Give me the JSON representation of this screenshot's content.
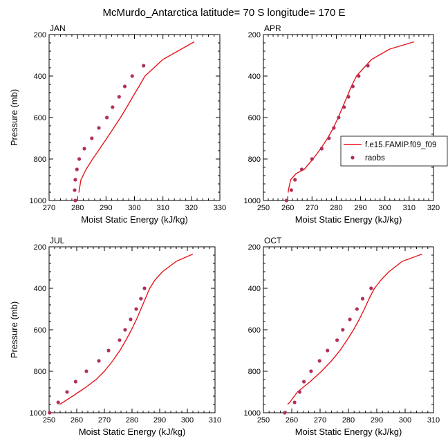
{
  "title": "McMurdo_Antarctica  latitude= 70 S longitude= 170 E",
  "colors": {
    "model_line": "#e8141b",
    "raobs_marker": "#b0305c",
    "axis": "#000000",
    "background": "#ffffff"
  },
  "legend": {
    "entries": [
      "f.e15.FAMIP.f09_f09",
      "raobs"
    ],
    "placement": "right of APR panel, overlapping"
  },
  "chart_data": [
    {
      "type": "line",
      "panel_label": "JAN",
      "xlabel": "Moist Static Energy (kJ/kg)",
      "ylabel": "Pressure (mb)",
      "xlim": [
        270,
        330
      ],
      "ylim": [
        1000,
        200
      ],
      "y_inverted": true,
      "xticks": [
        "270",
        "280",
        "290",
        "300",
        "310",
        "320",
        "330"
      ],
      "yticks": [
        "200",
        "400",
        "600",
        "800",
        "1000"
      ],
      "series": [
        {
          "name": "f.e15.FAMIP.f09_f09",
          "kind": "line",
          "x": [
            280.5,
            280.6,
            281.2,
            283.0,
            285.3,
            287.8,
            290.3,
            292.7,
            295.1,
            297.3,
            299.4,
            301.6,
            303.7,
            310.0,
            321.0
          ],
          "y": [
            962,
            950,
            900,
            850,
            800,
            750,
            700,
            650,
            600,
            550,
            500,
            450,
            400,
            320,
            235
          ]
        },
        {
          "name": "raobs",
          "kind": "markers",
          "x": [
            279.2,
            279.0,
            279.2,
            279.8,
            280.6,
            282.4,
            285.0,
            287.5,
            290.3,
            292.3,
            294.6,
            296.6,
            299.2,
            303.2
          ],
          "y": [
            1000,
            950,
            900,
            850,
            800,
            750,
            700,
            650,
            600,
            550,
            500,
            450,
            400,
            350
          ]
        }
      ]
    },
    {
      "type": "line",
      "panel_label": "APR",
      "xlabel": "Moist Static Energy (kJ/kg)",
      "ylabel": "",
      "xlim": [
        250,
        320
      ],
      "ylim": [
        1000,
        200
      ],
      "y_inverted": true,
      "xticks": [
        "250",
        "260",
        "270",
        "280",
        "290",
        "300",
        "310",
        "320"
      ],
      "yticks": [
        "200",
        "400",
        "600",
        "800",
        "1000"
      ],
      "series": [
        {
          "name": "f.e15.FAMIP.f09_f09",
          "kind": "line",
          "x": [
            260.2,
            260.3,
            261.2,
            263.5,
            266.8,
            270.4,
            273.6,
            276.4,
            278.8,
            280.8,
            282.6,
            284.4,
            286.2,
            288.3,
            290.6,
            294.5,
            302.0,
            312.0
          ],
          "y": [
            962,
            950,
            900,
            870,
            850,
            800,
            750,
            700,
            650,
            600,
            550,
            500,
            450,
            400,
            370,
            320,
            270,
            235
          ]
        },
        {
          "name": "raobs",
          "kind": "markers",
          "x": [
            259.5,
            261.5,
            263.0,
            265.8,
            270.0,
            274.0,
            277.0,
            279.0,
            281.0,
            283.2,
            285.0,
            286.8,
            289.2,
            293.0
          ],
          "y": [
            1000,
            950,
            900,
            850,
            800,
            750,
            700,
            650,
            600,
            550,
            500,
            450,
            400,
            350
          ]
        }
      ]
    },
    {
      "type": "line",
      "panel_label": "JUL",
      "xlabel": "Moist Static Energy (kJ/kg)",
      "ylabel": "Pressure (mb)",
      "xlim": [
        250,
        310
      ],
      "ylim": [
        1000,
        200
      ],
      "y_inverted": true,
      "xticks": [
        "250",
        "260",
        "270",
        "280",
        "290",
        "300",
        "310"
      ],
      "yticks": [
        "200",
        "400",
        "600",
        "800",
        "1000"
      ],
      "series": [
        {
          "name": "f.e15.FAMIP.f09_f09",
          "kind": "line",
          "x": [
            253.8,
            255.0,
            258.5,
            263.0,
            267.0,
            270.0,
            273.0,
            275.6,
            277.8,
            279.8,
            281.6,
            283.2,
            284.8,
            286.4,
            288.3,
            291.0,
            296.0,
            302.0
          ],
          "y": [
            960,
            950,
            920,
            880,
            840,
            800,
            750,
            700,
            650,
            600,
            550,
            500,
            450,
            400,
            360,
            320,
            270,
            235
          ]
        },
        {
          "name": "raobs",
          "kind": "markers",
          "x": [
            250.2,
            253.3,
            256.5,
            259.6,
            263.5,
            268.0,
            271.5,
            275.5,
            277.5,
            279.5,
            281.5,
            283.2,
            284.5
          ],
          "y": [
            1000,
            950,
            900,
            850,
            800,
            750,
            700,
            650,
            600,
            550,
            500,
            450,
            400
          ]
        }
      ]
    },
    {
      "type": "line",
      "panel_label": "OCT",
      "xlabel": "Moist Static Energy (kJ/kg)",
      "ylabel": "",
      "xlim": [
        250,
        310
      ],
      "ylim": [
        1000,
        200
      ],
      "y_inverted": true,
      "xticks": [
        "250",
        "260",
        "270",
        "280",
        "290",
        "300",
        "310"
      ],
      "yticks": [
        "200",
        "400",
        "600",
        "800",
        "1000"
      ],
      "series": [
        {
          "name": "f.e15.FAMIP.f09_f09",
          "kind": "line",
          "x": [
            258.5,
            259.3,
            262.0,
            266.5,
            270.5,
            274.0,
            277.0,
            279.5,
            281.8,
            283.8,
            285.6,
            287.3,
            289.2,
            291.5,
            294.3,
            299.0,
            306.0
          ],
          "y": [
            960,
            950,
            900,
            850,
            800,
            750,
            700,
            650,
            600,
            550,
            500,
            450,
            400,
            360,
            320,
            270,
            235
          ]
        },
        {
          "name": "raobs",
          "kind": "markers",
          "x": [
            257.5,
            261.0,
            262.8,
            264.3,
            266.8,
            269.8,
            272.6,
            276.0,
            278.0,
            280.5,
            283.0,
            285.0,
            288.0
          ],
          "y": [
            1000,
            950,
            900,
            850,
            800,
            750,
            700,
            650,
            600,
            550,
            500,
            450,
            400
          ]
        }
      ]
    }
  ]
}
